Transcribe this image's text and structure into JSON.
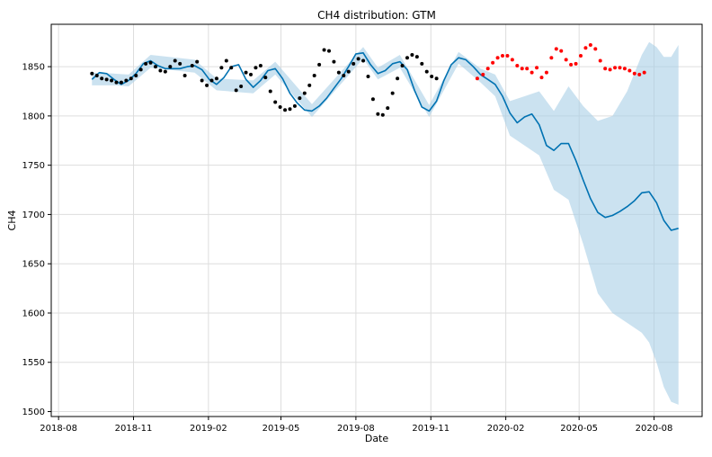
{
  "chart_data": {
    "type": "line",
    "title": "CH4 distribution: GTM",
    "xlabel": "Date",
    "ylabel": "CH4",
    "xlim": [
      "2018-07-23",
      "2020-09-29"
    ],
    "ylim": [
      1495,
      1893
    ],
    "grid": true,
    "x_ticks": [
      {
        "date": "2018-08-01",
        "label": "2018-08"
      },
      {
        "date": "2018-11-01",
        "label": "2018-11"
      },
      {
        "date": "2019-02-01",
        "label": "2019-02"
      },
      {
        "date": "2019-05-01",
        "label": "2019-05"
      },
      {
        "date": "2019-08-01",
        "label": "2019-08"
      },
      {
        "date": "2019-11-01",
        "label": "2019-11"
      },
      {
        "date": "2020-02-01",
        "label": "2020-02"
      },
      {
        "date": "2020-05-01",
        "label": "2020-05"
      },
      {
        "date": "2020-08-01",
        "label": "2020-08"
      }
    ],
    "y_ticks": [
      1500,
      1550,
      1600,
      1650,
      1700,
      1750,
      1800,
      1850
    ],
    "colors": {
      "forecast": "#0072B2",
      "band": "#a8cfe6",
      "observed": "#000000",
      "actual_future": "#ff0000"
    },
    "forecast": [
      {
        "date": "2018-09-11",
        "yhat": 1837
      },
      {
        "date": "2018-09-20",
        "yhat": 1844
      },
      {
        "date": "2018-09-29",
        "yhat": 1843
      },
      {
        "date": "2018-10-08",
        "yhat": 1837
      },
      {
        "date": "2018-10-17",
        "yhat": 1832
      },
      {
        "date": "2018-10-26",
        "yhat": 1836
      },
      {
        "date": "2018-11-04",
        "yhat": 1843
      },
      {
        "date": "2018-11-13",
        "yhat": 1853
      },
      {
        "date": "2018-11-22",
        "yhat": 1856
      },
      {
        "date": "2018-12-01",
        "yhat": 1851
      },
      {
        "date": "2018-12-10",
        "yhat": 1848
      },
      {
        "date": "2018-12-19",
        "yhat": 1848
      },
      {
        "date": "2018-12-28",
        "yhat": 1848
      },
      {
        "date": "2019-01-06",
        "yhat": 1850
      },
      {
        "date": "2019-01-15",
        "yhat": 1851
      },
      {
        "date": "2019-01-24",
        "yhat": 1847
      },
      {
        "date": "2019-02-02",
        "yhat": 1837
      },
      {
        "date": "2019-02-11",
        "yhat": 1832
      },
      {
        "date": "2019-02-20",
        "yhat": 1839
      },
      {
        "date": "2019-03-01",
        "yhat": 1850
      },
      {
        "date": "2019-03-10",
        "yhat": 1852
      },
      {
        "date": "2019-03-19",
        "yhat": 1837
      },
      {
        "date": "2019-03-28",
        "yhat": 1829
      },
      {
        "date": "2019-04-06",
        "yhat": 1836
      },
      {
        "date": "2019-04-15",
        "yhat": 1846
      },
      {
        "date": "2019-04-24",
        "yhat": 1848
      },
      {
        "date": "2019-05-03",
        "yhat": 1838
      },
      {
        "date": "2019-05-12",
        "yhat": 1823
      },
      {
        "date": "2019-05-21",
        "yhat": 1813
      },
      {
        "date": "2019-05-30",
        "yhat": 1806
      },
      {
        "date": "2019-06-08",
        "yhat": 1805
      },
      {
        "date": "2019-06-17",
        "yhat": 1810
      },
      {
        "date": "2019-06-26",
        "yhat": 1818
      },
      {
        "date": "2019-07-05",
        "yhat": 1828
      },
      {
        "date": "2019-07-14",
        "yhat": 1838
      },
      {
        "date": "2019-07-23",
        "yhat": 1850
      },
      {
        "date": "2019-08-01",
        "yhat": 1863
      },
      {
        "date": "2019-08-10",
        "yhat": 1864
      },
      {
        "date": "2019-08-19",
        "yhat": 1852
      },
      {
        "date": "2019-08-28",
        "yhat": 1843
      },
      {
        "date": "2019-09-06",
        "yhat": 1846
      },
      {
        "date": "2019-09-15",
        "yhat": 1853
      },
      {
        "date": "2019-09-24",
        "yhat": 1855
      },
      {
        "date": "2019-10-03",
        "yhat": 1847
      },
      {
        "date": "2019-10-12",
        "yhat": 1826
      },
      {
        "date": "2019-10-21",
        "yhat": 1809
      },
      {
        "date": "2019-10-30",
        "yhat": 1805
      },
      {
        "date": "2019-11-08",
        "yhat": 1815
      },
      {
        "date": "2019-11-17",
        "yhat": 1836
      },
      {
        "date": "2019-11-26",
        "yhat": 1852
      },
      {
        "date": "2019-12-05",
        "yhat": 1859
      },
      {
        "date": "2019-12-14",
        "yhat": 1857
      },
      {
        "date": "2019-12-23",
        "yhat": 1850
      },
      {
        "date": "2020-01-01",
        "yhat": 1842
      },
      {
        "date": "2020-01-10",
        "yhat": 1837
      },
      {
        "date": "2020-01-19",
        "yhat": 1832
      },
      {
        "date": "2020-01-28",
        "yhat": 1820
      },
      {
        "date": "2020-02-06",
        "yhat": 1803
      },
      {
        "date": "2020-02-15",
        "yhat": 1793
      },
      {
        "date": "2020-02-24",
        "yhat": 1799
      },
      {
        "date": "2020-03-04",
        "yhat": 1802
      },
      {
        "date": "2020-03-13",
        "yhat": 1791
      },
      {
        "date": "2020-03-22",
        "yhat": 1770
      },
      {
        "date": "2020-03-31",
        "yhat": 1765
      },
      {
        "date": "2020-04-09",
        "yhat": 1772
      },
      {
        "date": "2020-04-18",
        "yhat": 1772
      },
      {
        "date": "2020-04-27",
        "yhat": 1755
      },
      {
        "date": "2020-05-06",
        "yhat": 1735
      },
      {
        "date": "2020-05-15",
        "yhat": 1716
      },
      {
        "date": "2020-05-24",
        "yhat": 1702
      },
      {
        "date": "2020-06-02",
        "yhat": 1697
      },
      {
        "date": "2020-06-11",
        "yhat": 1699
      },
      {
        "date": "2020-06-20",
        "yhat": 1703
      },
      {
        "date": "2020-06-29",
        "yhat": 1708
      },
      {
        "date": "2020-07-08",
        "yhat": 1714
      },
      {
        "date": "2020-07-17",
        "yhat": 1722
      },
      {
        "date": "2020-07-26",
        "yhat": 1723
      },
      {
        "date": "2020-08-04",
        "yhat": 1712
      },
      {
        "date": "2020-08-13",
        "yhat": 1694
      },
      {
        "date": "2020-08-22",
        "yhat": 1684
      },
      {
        "date": "2020-08-31",
        "yhat": 1686
      }
    ],
    "band": [
      {
        "date": "2018-09-11",
        "lower": 1831,
        "upper": 1844
      },
      {
        "date": "2018-10-08",
        "lower": 1831,
        "upper": 1843
      },
      {
        "date": "2018-10-26",
        "lower": 1830,
        "upper": 1842
      },
      {
        "date": "2018-11-22",
        "lower": 1849,
        "upper": 1862
      },
      {
        "date": "2019-01-15",
        "lower": 1844,
        "upper": 1857
      },
      {
        "date": "2019-02-11",
        "lower": 1826,
        "upper": 1838
      },
      {
        "date": "2019-03-28",
        "lower": 1823,
        "upper": 1836
      },
      {
        "date": "2019-04-24",
        "lower": 1842,
        "upper": 1855
      },
      {
        "date": "2019-06-08",
        "lower": 1799,
        "upper": 1812
      },
      {
        "date": "2019-08-10",
        "lower": 1858,
        "upper": 1870
      },
      {
        "date": "2019-08-28",
        "lower": 1837,
        "upper": 1849
      },
      {
        "date": "2019-09-24",
        "lower": 1849,
        "upper": 1862
      },
      {
        "date": "2019-10-30",
        "lower": 1799,
        "upper": 1811
      },
      {
        "date": "2019-12-05",
        "lower": 1853,
        "upper": 1865
      },
      {
        "date": "2020-01-01",
        "lower": 1834,
        "upper": 1848
      },
      {
        "date": "2020-01-19",
        "lower": 1820,
        "upper": 1842
      },
      {
        "date": "2020-02-06",
        "lower": 1780,
        "upper": 1815
      },
      {
        "date": "2020-02-24",
        "lower": 1770,
        "upper": 1820
      },
      {
        "date": "2020-03-13",
        "lower": 1760,
        "upper": 1825
      },
      {
        "date": "2020-03-31",
        "lower": 1725,
        "upper": 1805
      },
      {
        "date": "2020-04-18",
        "lower": 1715,
        "upper": 1830
      },
      {
        "date": "2020-05-06",
        "lower": 1670,
        "upper": 1810
      },
      {
        "date": "2020-05-24",
        "lower": 1620,
        "upper": 1795
      },
      {
        "date": "2020-06-11",
        "lower": 1600,
        "upper": 1800
      },
      {
        "date": "2020-06-29",
        "lower": 1590,
        "upper": 1825
      },
      {
        "date": "2020-07-17",
        "lower": 1580,
        "upper": 1862
      },
      {
        "date": "2020-07-26",
        "lower": 1570,
        "upper": 1875
      },
      {
        "date": "2020-08-04",
        "lower": 1550,
        "upper": 1870
      },
      {
        "date": "2020-08-13",
        "lower": 1525,
        "upper": 1860
      },
      {
        "date": "2020-08-22",
        "lower": 1510,
        "upper": 1860
      },
      {
        "date": "2020-08-31",
        "lower": 1507,
        "upper": 1872
      }
    ],
    "observed": [
      {
        "date": "2018-09-11",
        "value": 1843
      },
      {
        "date": "2018-09-17",
        "value": 1841
      },
      {
        "date": "2018-09-23",
        "value": 1838
      },
      {
        "date": "2018-09-29",
        "value": 1837
      },
      {
        "date": "2018-10-05",
        "value": 1836
      },
      {
        "date": "2018-10-11",
        "value": 1834
      },
      {
        "date": "2018-10-17",
        "value": 1834
      },
      {
        "date": "2018-10-23",
        "value": 1836
      },
      {
        "date": "2018-10-29",
        "value": 1838
      },
      {
        "date": "2018-11-04",
        "value": 1841
      },
      {
        "date": "2018-11-10",
        "value": 1847
      },
      {
        "date": "2018-11-16",
        "value": 1853
      },
      {
        "date": "2018-11-22",
        "value": 1854
      },
      {
        "date": "2018-11-28",
        "value": 1850
      },
      {
        "date": "2018-12-04",
        "value": 1846
      },
      {
        "date": "2018-12-10",
        "value": 1845
      },
      {
        "date": "2018-12-16",
        "value": 1850
      },
      {
        "date": "2018-12-22",
        "value": 1856
      },
      {
        "date": "2018-12-28",
        "value": 1853
      },
      {
        "date": "2019-01-03",
        "value": 1841
      },
      {
        "date": "2019-01-12",
        "value": 1851
      },
      {
        "date": "2019-01-18",
        "value": 1855
      },
      {
        "date": "2019-01-24",
        "value": 1836
      },
      {
        "date": "2019-01-30",
        "value": 1831
      },
      {
        "date": "2019-02-05",
        "value": 1836
      },
      {
        "date": "2019-02-11",
        "value": 1838
      },
      {
        "date": "2019-02-17",
        "value": 1849
      },
      {
        "date": "2019-02-23",
        "value": 1856
      },
      {
        "date": "2019-03-01",
        "value": 1849
      },
      {
        "date": "2019-03-07",
        "value": 1826
      },
      {
        "date": "2019-03-13",
        "value": 1830
      },
      {
        "date": "2019-03-19",
        "value": 1844
      },
      {
        "date": "2019-03-25",
        "value": 1842
      },
      {
        "date": "2019-03-31",
        "value": 1849
      },
      {
        "date": "2019-04-06",
        "value": 1851
      },
      {
        "date": "2019-04-12",
        "value": 1839
      },
      {
        "date": "2019-04-18",
        "value": 1825
      },
      {
        "date": "2019-04-24",
        "value": 1814
      },
      {
        "date": "2019-04-30",
        "value": 1809
      },
      {
        "date": "2019-05-06",
        "value": 1806
      },
      {
        "date": "2019-05-12",
        "value": 1807
      },
      {
        "date": "2019-05-18",
        "value": 1810
      },
      {
        "date": "2019-05-24",
        "value": 1818
      },
      {
        "date": "2019-05-30",
        "value": 1823
      },
      {
        "date": "2019-06-05",
        "value": 1831
      },
      {
        "date": "2019-06-11",
        "value": 1841
      },
      {
        "date": "2019-06-17",
        "value": 1852
      },
      {
        "date": "2019-06-23",
        "value": 1867
      },
      {
        "date": "2019-06-29",
        "value": 1866
      },
      {
        "date": "2019-07-05",
        "value": 1855
      },
      {
        "date": "2019-07-11",
        "value": 1844
      },
      {
        "date": "2019-07-17",
        "value": 1841
      },
      {
        "date": "2019-07-23",
        "value": 1845
      },
      {
        "date": "2019-07-29",
        "value": 1853
      },
      {
        "date": "2019-08-04",
        "value": 1858
      },
      {
        "date": "2019-08-10",
        "value": 1856
      },
      {
        "date": "2019-08-16",
        "value": 1840
      },
      {
        "date": "2019-08-22",
        "value": 1817
      },
      {
        "date": "2019-08-28",
        "value": 1802
      },
      {
        "date": "2019-09-03",
        "value": 1801
      },
      {
        "date": "2019-09-09",
        "value": 1808
      },
      {
        "date": "2019-09-15",
        "value": 1823
      },
      {
        "date": "2019-09-21",
        "value": 1838
      },
      {
        "date": "2019-09-27",
        "value": 1851
      },
      {
        "date": "2019-10-03",
        "value": 1859
      },
      {
        "date": "2019-10-09",
        "value": 1862
      },
      {
        "date": "2019-10-15",
        "value": 1860
      },
      {
        "date": "2019-10-21",
        "value": 1853
      },
      {
        "date": "2019-10-27",
        "value": 1845
      },
      {
        "date": "2019-11-02",
        "value": 1840
      },
      {
        "date": "2019-11-08",
        "value": 1838
      }
    ],
    "actual_future": [
      {
        "date": "2019-12-28",
        "value": 1838
      },
      {
        "date": "2020-01-04",
        "value": 1842
      },
      {
        "date": "2020-01-10",
        "value": 1848
      },
      {
        "date": "2020-01-16",
        "value": 1854
      },
      {
        "date": "2020-01-22",
        "value": 1859
      },
      {
        "date": "2020-01-28",
        "value": 1861
      },
      {
        "date": "2020-02-03",
        "value": 1861
      },
      {
        "date": "2020-02-09",
        "value": 1857
      },
      {
        "date": "2020-02-15",
        "value": 1851
      },
      {
        "date": "2020-02-21",
        "value": 1848
      },
      {
        "date": "2020-02-27",
        "value": 1848
      },
      {
        "date": "2020-03-04",
        "value": 1844
      },
      {
        "date": "2020-03-10",
        "value": 1849
      },
      {
        "date": "2020-03-16",
        "value": 1839
      },
      {
        "date": "2020-03-22",
        "value": 1844
      },
      {
        "date": "2020-03-28",
        "value": 1859
      },
      {
        "date": "2020-04-03",
        "value": 1868
      },
      {
        "date": "2020-04-09",
        "value": 1866
      },
      {
        "date": "2020-04-15",
        "value": 1857
      },
      {
        "date": "2020-04-21",
        "value": 1852
      },
      {
        "date": "2020-04-27",
        "value": 1853
      },
      {
        "date": "2020-05-03",
        "value": 1861
      },
      {
        "date": "2020-05-09",
        "value": 1869
      },
      {
        "date": "2020-05-15",
        "value": 1872
      },
      {
        "date": "2020-05-21",
        "value": 1868
      },
      {
        "date": "2020-05-27",
        "value": 1856
      },
      {
        "date": "2020-06-02",
        "value": 1848
      },
      {
        "date": "2020-06-08",
        "value": 1847
      },
      {
        "date": "2020-06-14",
        "value": 1849
      },
      {
        "date": "2020-06-20",
        "value": 1849
      },
      {
        "date": "2020-06-26",
        "value": 1848
      },
      {
        "date": "2020-07-02",
        "value": 1846
      },
      {
        "date": "2020-07-08",
        "value": 1843
      },
      {
        "date": "2020-07-14",
        "value": 1842
      },
      {
        "date": "2020-07-20",
        "value": 1844
      }
    ]
  }
}
